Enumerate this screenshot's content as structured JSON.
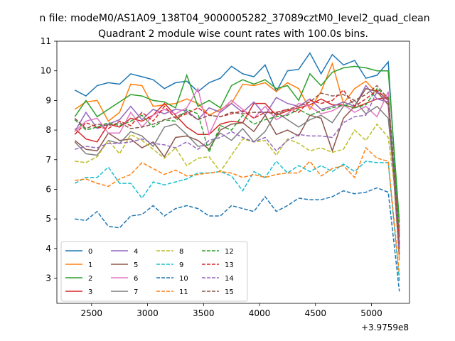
{
  "chart_data": {
    "type": "line",
    "suptitle": "n file: modeM0/AS1A09_138T04_9000005282_37089cztM0_level2_quad_clean",
    "title": "Quadrant 2 module wise count rates with 100.0s bins.",
    "xlabel": "",
    "ylabel": "",
    "x_offset_label": "+3.9759e8",
    "xlim": [
      2190,
      5340
    ],
    "ylim": [
      2.15,
      11.0
    ],
    "xticks": [
      2500,
      3000,
      3500,
      4000,
      4500,
      5000
    ],
    "yticks": [
      3,
      4,
      5,
      6,
      7,
      8,
      9,
      10,
      11
    ],
    "legend_position": "lower-left",
    "x": [
      2350,
      2450,
      2550,
      2650,
      2750,
      2850,
      2950,
      3050,
      3150,
      3250,
      3350,
      3450,
      3550,
      3650,
      3750,
      3850,
      3950,
      4050,
      4150,
      4250,
      4350,
      4450,
      4550,
      4650,
      4750,
      4850,
      4950,
      5050,
      5150,
      5250
    ],
    "series": [
      {
        "name": "0",
        "color": "#1f77b4",
        "dash": "solid",
        "values": [
          9.35,
          9.15,
          9.5,
          9.6,
          9.55,
          9.9,
          9.8,
          9.7,
          9.4,
          9.6,
          9.65,
          9.3,
          9.6,
          9.75,
          10.15,
          9.9,
          9.8,
          10.2,
          9.3,
          10.0,
          10.05,
          10.6,
          9.9,
          10.55,
          10.2,
          10.35,
          9.75,
          9.85,
          10.3,
          4.4
        ]
      },
      {
        "name": "1",
        "color": "#ff7f0e",
        "dash": "solid",
        "values": [
          8.7,
          8.95,
          9.0,
          8.3,
          8.6,
          9.55,
          9.5,
          8.8,
          8.85,
          8.9,
          9.05,
          8.9,
          8.5,
          8.7,
          8.9,
          9.55,
          9.5,
          9.6,
          9.3,
          9.6,
          9.4,
          8.7,
          9.3,
          10.25,
          8.9,
          9.4,
          9.65,
          9.25,
          9.1,
          3.6
        ]
      },
      {
        "name": "2",
        "color": "#2ca02c",
        "dash": "solid",
        "values": [
          8.45,
          9.0,
          8.45,
          8.7,
          8.95,
          9.2,
          9.15,
          9.0,
          8.95,
          8.75,
          9.85,
          8.8,
          9.0,
          8.75,
          9.5,
          9.7,
          9.55,
          9.7,
          9.4,
          9.5,
          9.0,
          9.9,
          9.5,
          9.95,
          10.1,
          10.15,
          10.1,
          10.0,
          10.0,
          4.9
        ]
      },
      {
        "name": "3",
        "color": "#d62728",
        "dash": "solid",
        "values": [
          8.05,
          7.7,
          7.6,
          8.2,
          8.1,
          8.4,
          8.3,
          8.5,
          8.9,
          8.5,
          8.1,
          7.85,
          7.85,
          8.2,
          8.3,
          8.25,
          8.9,
          8.9,
          8.5,
          8.65,
          8.75,
          8.85,
          9.05,
          8.85,
          8.85,
          8.75,
          8.9,
          9.05,
          9.1,
          4.0
        ]
      },
      {
        "name": "4",
        "color": "#9467bd",
        "dash": "solid",
        "values": [
          7.95,
          8.6,
          8.05,
          8.2,
          8.35,
          8.8,
          8.35,
          8.7,
          8.55,
          8.7,
          8.65,
          8.35,
          8.75,
          8.6,
          8.9,
          8.6,
          8.95,
          8.5,
          9.1,
          8.9,
          8.8,
          9.05,
          8.7,
          8.8,
          8.95,
          8.8,
          9.5,
          9.05,
          8.95,
          4.6
        ]
      },
      {
        "name": "5",
        "color": "#8c564b",
        "dash": "solid",
        "values": [
          7.65,
          7.35,
          7.3,
          7.9,
          7.65,
          7.7,
          7.4,
          7.6,
          7.1,
          7.75,
          7.8,
          7.65,
          7.35,
          8.0,
          8.2,
          8.25,
          7.95,
          8.5,
          7.85,
          8.0,
          7.8,
          8.5,
          8.4,
          7.3,
          8.4,
          8.8,
          9.4,
          9.3,
          8.85,
          3.8
        ]
      },
      {
        "name": "6",
        "color": "#e377c2",
        "dash": "solid",
        "values": [
          7.95,
          8.3,
          8.4,
          7.9,
          7.9,
          8.6,
          8.1,
          8.5,
          8.7,
          8.55,
          8.75,
          9.4,
          7.85,
          8.65,
          9.0,
          8.7,
          8.4,
          8.8,
          8.35,
          8.55,
          8.9,
          8.8,
          8.55,
          8.65,
          8.85,
          8.6,
          8.8,
          8.45,
          9.3,
          4.1
        ]
      },
      {
        "name": "7",
        "color": "#7f7f7f",
        "dash": "solid",
        "values": [
          7.6,
          7.2,
          7.15,
          7.65,
          7.55,
          7.95,
          7.8,
          7.45,
          8.1,
          8.2,
          7.85,
          7.45,
          7.5,
          7.9,
          7.65,
          8.05,
          7.6,
          7.95,
          8.6,
          8.35,
          8.1,
          8.35,
          8.5,
          8.25,
          8.8,
          9.0,
          8.55,
          8.8,
          8.4,
          4.5
        ]
      },
      {
        "name": "8",
        "color": "#bcbd22",
        "dash": "dashed",
        "values": [
          6.95,
          6.9,
          7.1,
          7.65,
          7.2,
          7.85,
          7.65,
          7.35,
          7.05,
          7.4,
          6.8,
          7.05,
          7.1,
          6.6,
          7.15,
          7.7,
          7.6,
          7.65,
          7.15,
          7.7,
          7.55,
          7.3,
          7.4,
          7.25,
          7.35,
          8.0,
          7.65,
          8.2,
          7.75,
          4.8
        ]
      },
      {
        "name": "9",
        "color": "#17becf",
        "dash": "dashed",
        "values": [
          6.2,
          6.4,
          6.4,
          6.75,
          6.2,
          6.2,
          5.7,
          6.25,
          6.15,
          6.25,
          6.35,
          6.55,
          6.55,
          6.6,
          6.45,
          5.95,
          6.6,
          6.4,
          6.95,
          6.55,
          6.8,
          6.6,
          6.8,
          6.6,
          6.85,
          6.6,
          6.95,
          6.9,
          6.9,
          2.9
        ]
      },
      {
        "name": "10",
        "color": "#1f77b4",
        "dash": "dashed",
        "values": [
          5.0,
          4.95,
          5.25,
          4.75,
          4.7,
          5.1,
          5.15,
          5.45,
          5.1,
          5.35,
          5.45,
          5.35,
          5.1,
          5.1,
          5.45,
          5.35,
          5.25,
          5.75,
          5.25,
          5.45,
          5.7,
          5.65,
          5.65,
          5.75,
          5.95,
          5.85,
          5.9,
          6.05,
          5.9,
          2.55
        ]
      },
      {
        "name": "11",
        "color": "#ff7f0e",
        "dash": "dashed",
        "values": [
          6.3,
          6.35,
          6.2,
          6.1,
          6.35,
          6.5,
          6.9,
          6.7,
          6.5,
          6.65,
          6.45,
          6.5,
          6.55,
          6.6,
          6.55,
          6.4,
          6.5,
          6.4,
          6.5,
          6.55,
          6.55,
          6.95,
          6.45,
          6.7,
          6.8,
          6.4,
          7.4,
          7.05,
          6.95,
          3.1
        ]
      },
      {
        "name": "12",
        "color": "#2ca02c",
        "dash": "dashed",
        "values": [
          8.35,
          8.0,
          8.1,
          8.25,
          8.15,
          8.3,
          8.5,
          8.1,
          8.35,
          8.3,
          8.7,
          8.55,
          7.25,
          8.15,
          8.0,
          8.5,
          8.2,
          8.35,
          8.45,
          8.5,
          8.7,
          8.5,
          8.65,
          8.75,
          8.85,
          8.75,
          8.85,
          9.4,
          9.1,
          4.7
        ]
      },
      {
        "name": "13",
        "color": "#d62728",
        "dash": "dashed",
        "values": [
          7.85,
          8.25,
          8.1,
          8.05,
          8.3,
          8.15,
          8.6,
          8.3,
          8.8,
          8.4,
          8.55,
          8.75,
          8.5,
          8.45,
          8.55,
          8.65,
          8.4,
          8.6,
          8.6,
          8.7,
          8.6,
          9.0,
          8.9,
          9.0,
          9.35,
          8.8,
          9.05,
          9.35,
          9.0,
          4.2
        ]
      },
      {
        "name": "14",
        "color": "#9467bd",
        "dash": "dashed",
        "values": [
          7.35,
          7.45,
          7.4,
          7.55,
          7.55,
          7.6,
          7.7,
          7.55,
          7.5,
          7.4,
          7.6,
          7.35,
          7.65,
          7.75,
          7.95,
          7.75,
          7.6,
          7.75,
          7.3,
          7.65,
          7.85,
          7.8,
          7.8,
          7.75,
          8.25,
          8.45,
          8.5,
          9.3,
          9.0,
          3.8
        ]
      },
      {
        "name": "15",
        "color": "#8c564b",
        "dash": "dashed",
        "values": [
          8.4,
          8.05,
          8.2,
          8.15,
          8.25,
          8.05,
          8.1,
          8.2,
          8.35,
          8.45,
          8.6,
          8.35,
          8.5,
          8.45,
          8.6,
          8.55,
          8.6,
          8.6,
          8.55,
          8.7,
          8.8,
          8.95,
          9.25,
          9.15,
          9.2,
          9.0,
          9.2,
          9.5,
          9.05,
          4.1
        ]
      }
    ]
  }
}
